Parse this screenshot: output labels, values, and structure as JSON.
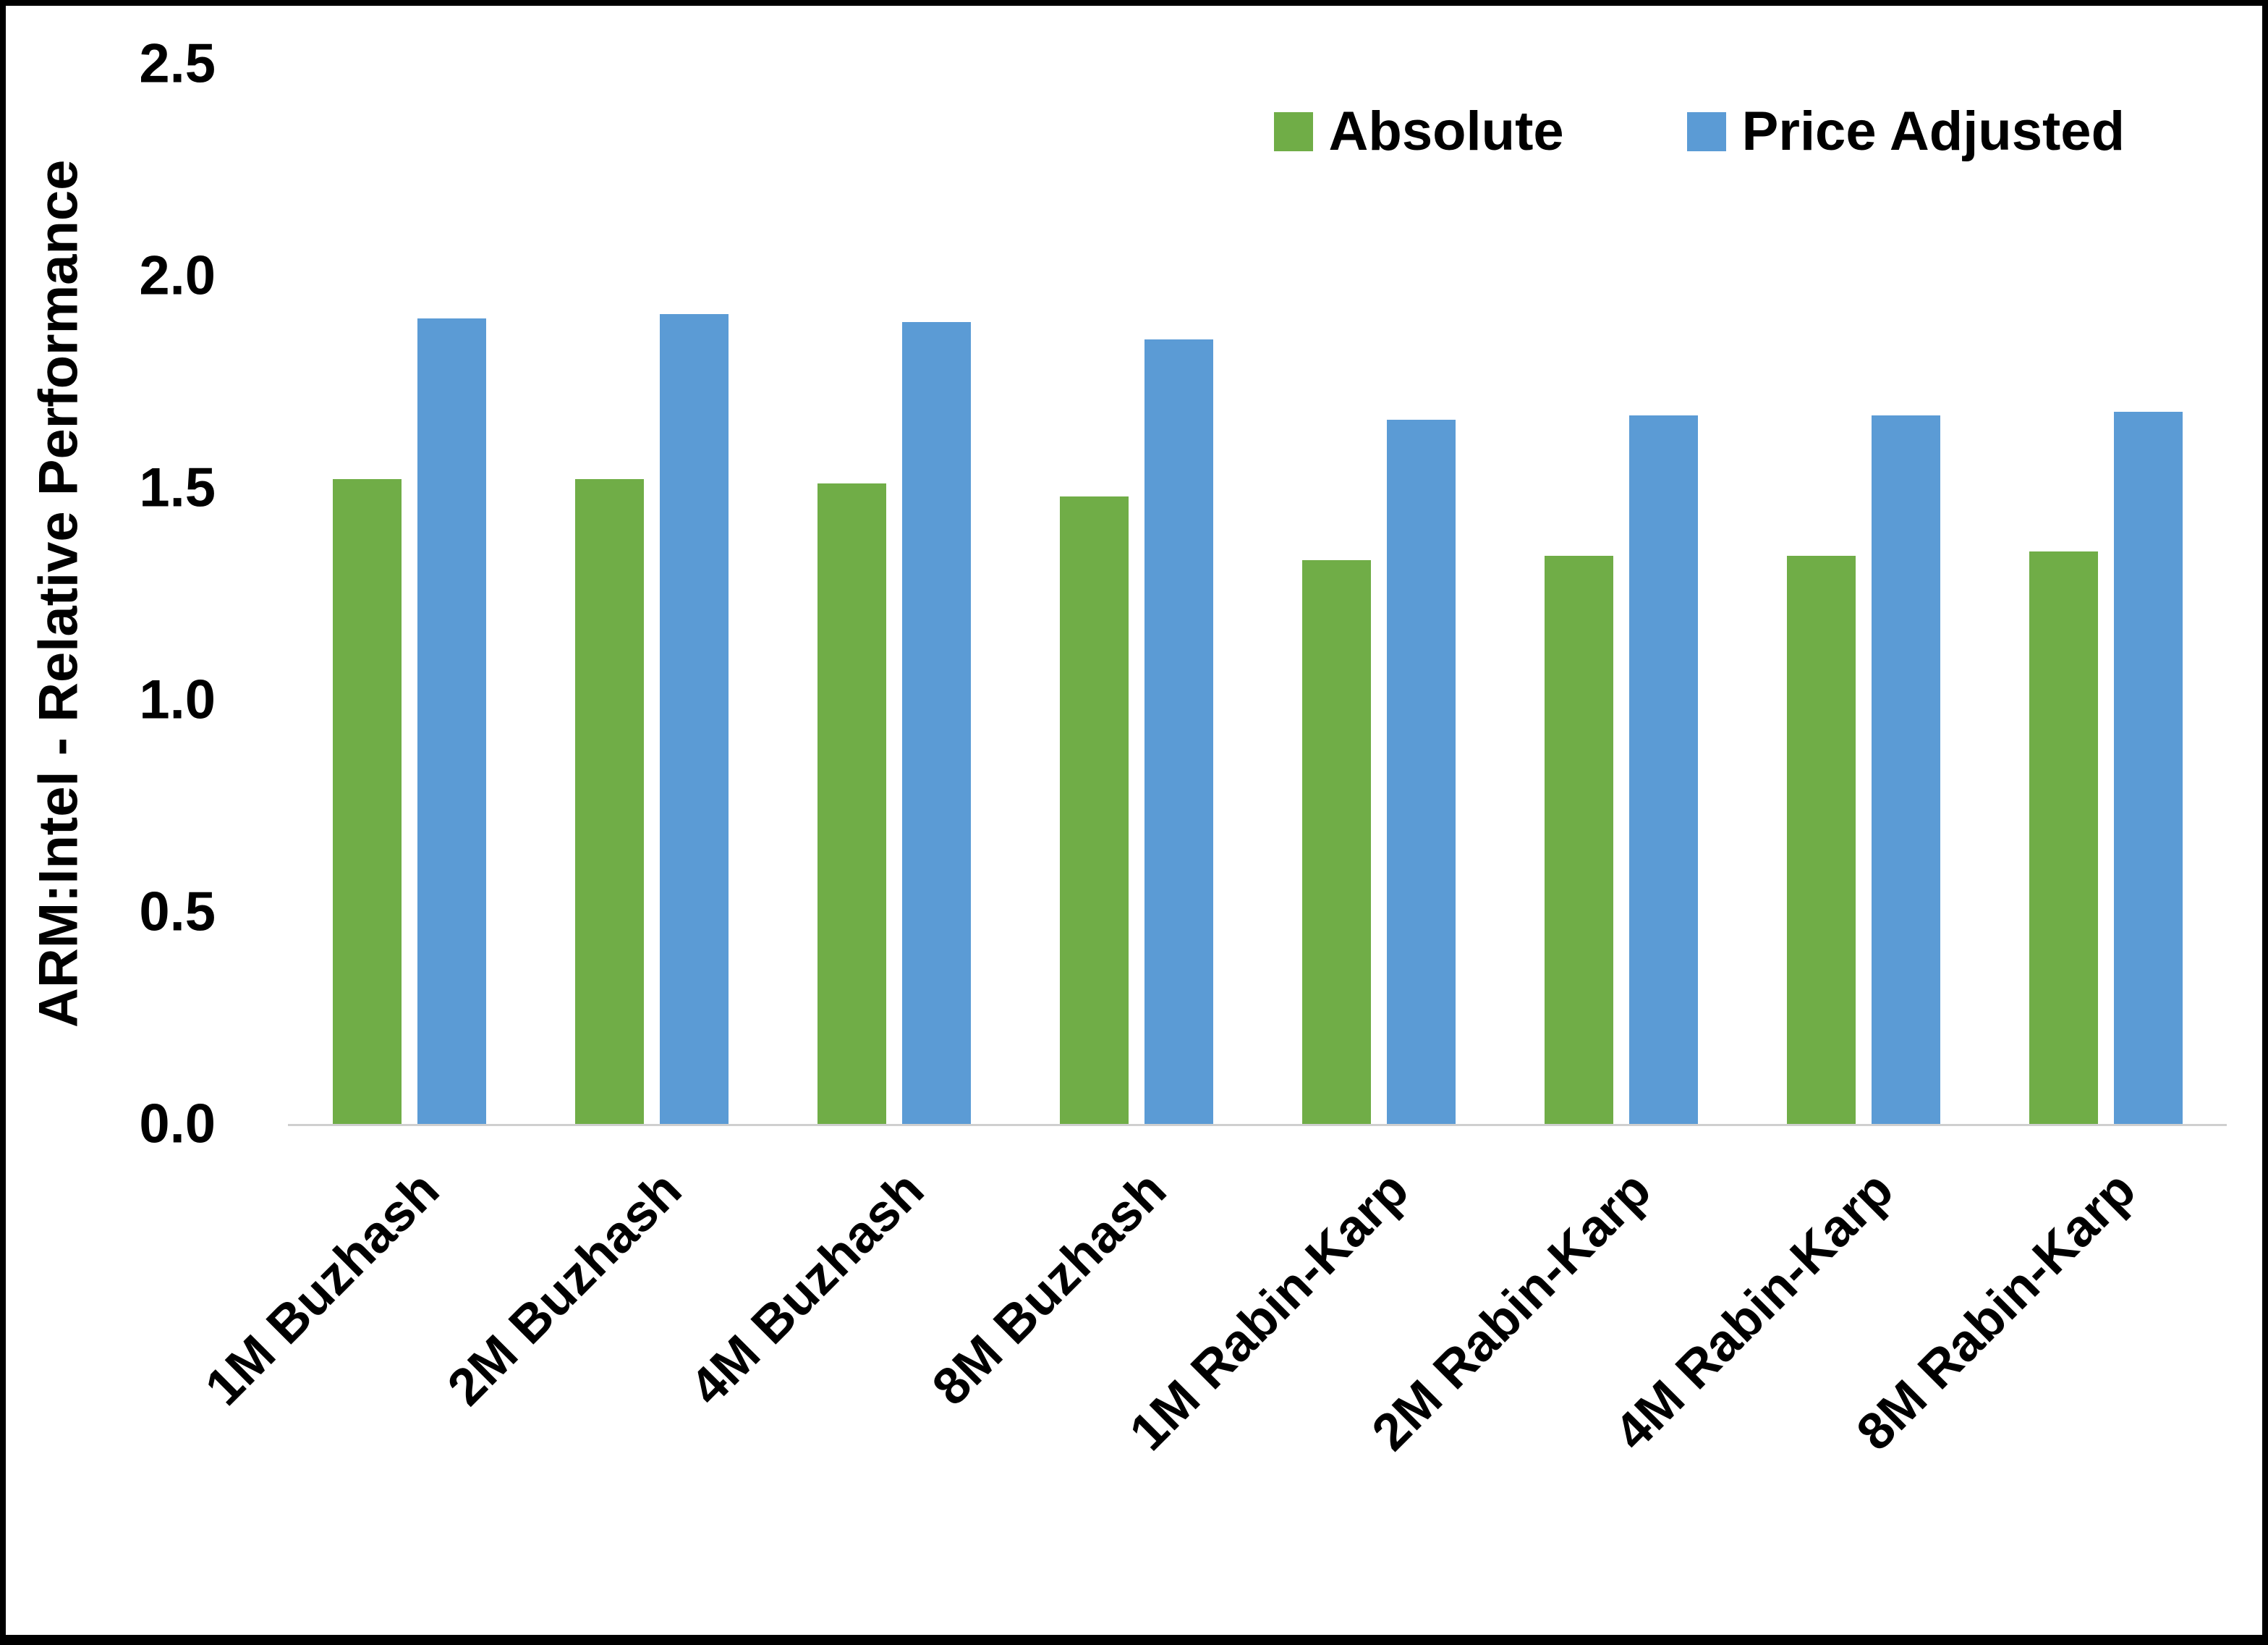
{
  "chart_data": {
    "type": "bar",
    "title": "",
    "xlabel": "",
    "ylabel": "ARM:Intel - Relative Performance",
    "ylim": [
      0,
      2.5
    ],
    "yticks": [
      "0.0",
      "0.5",
      "1.0",
      "1.5",
      "2.0",
      "2.5"
    ],
    "grid": false,
    "legend_position": "top-right",
    "categories": [
      "1M Buzhash",
      "2M Buzhash",
      "4M Buzhash",
      "8M Buzhash",
      "1M Rabin-Karp",
      "2M Rabin-Karp",
      "4M Rabin-Karp",
      "8M Rabin-Karp"
    ],
    "series": [
      {
        "name": "Absolute",
        "color": "#70AD47",
        "values": [
          1.52,
          1.52,
          1.51,
          1.48,
          1.33,
          1.34,
          1.34,
          1.35
        ]
      },
      {
        "name": "Price Adjusted",
        "color": "#5B9BD5",
        "values": [
          1.9,
          1.91,
          1.89,
          1.85,
          1.66,
          1.67,
          1.67,
          1.68
        ]
      }
    ]
  },
  "colors": {
    "background": "#ffffff",
    "border": "#000000",
    "axis_line": "#cfcfcf",
    "text": "#000000"
  }
}
